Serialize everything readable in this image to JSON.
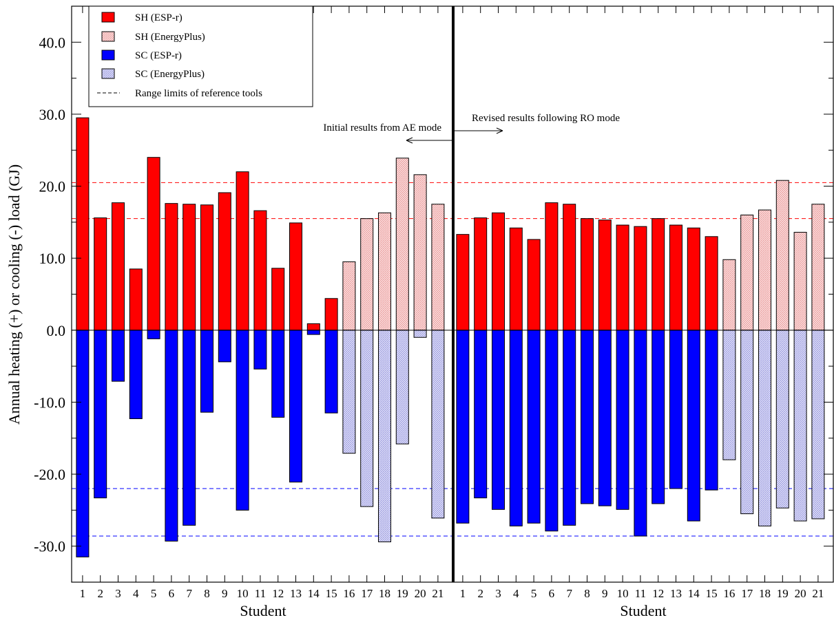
{
  "chart_data": {
    "type": "bar",
    "ylabel": "Annual heating (+) or cooling (-) load (GJ)",
    "ylim": [
      -35,
      45
    ],
    "y_ticks": [
      "40.0",
      "30.0",
      "20.0",
      "10.0",
      "0.0",
      "-10.0",
      "-20.0",
      "-30.0"
    ],
    "y_tick_values": [
      40,
      30,
      20,
      10,
      0,
      -10,
      -20,
      -30
    ],
    "grid": false,
    "legend_position": "top-left",
    "legend": [
      {
        "label": "SH (ESP-r)",
        "color": "#ff0000",
        "pattern": "solid"
      },
      {
        "label": "SH (EnergyPlus)",
        "color": "#f5b8b8",
        "pattern": "hatched"
      },
      {
        "label": "SC (ESP-r)",
        "color": "#0000ff",
        "pattern": "solid"
      },
      {
        "label": "SC (EnergyPlus)",
        "color": "#b8b8ee",
        "pattern": "hatched"
      },
      {
        "label": "Range limits of reference tools",
        "color": "#000000",
        "pattern": "dashed-line"
      }
    ],
    "reference_lines": [
      {
        "y": 20.5,
        "color": "#ff0000"
      },
      {
        "y": 15.5,
        "color": "#ff0000"
      },
      {
        "y": -22.0,
        "color": "#0000ff"
      },
      {
        "y": -28.6,
        "color": "#0000ff"
      }
    ],
    "panels": [
      {
        "xlabel": "Student",
        "annotation": "Initial results from AE mode",
        "categories": [
          "1",
          "2",
          "3",
          "4",
          "5",
          "6",
          "7",
          "8",
          "9",
          "10",
          "11",
          "12",
          "13",
          "14",
          "15",
          "16",
          "17",
          "18",
          "19",
          "20",
          "21"
        ],
        "heating": [
          29.5,
          15.6,
          17.7,
          8.5,
          24.0,
          17.6,
          17.5,
          17.4,
          19.1,
          22.0,
          16.6,
          8.6,
          14.9,
          0.9,
          4.4,
          9.5,
          15.5,
          16.3,
          23.9,
          21.6,
          17.5
        ],
        "cooling": [
          -31.5,
          -23.3,
          -7.1,
          -12.3,
          -1.2,
          -29.3,
          -27.1,
          -11.4,
          -4.4,
          -25.0,
          -5.4,
          -12.1,
          -21.1,
          -0.6,
          -11.5,
          -17.1,
          -24.5,
          -29.4,
          -15.8,
          -1.0,
          -26.1
        ],
        "tool": [
          "ESP-r",
          "ESP-r",
          "ESP-r",
          "ESP-r",
          "ESP-r",
          "ESP-r",
          "ESP-r",
          "ESP-r",
          "ESP-r",
          "ESP-r",
          "ESP-r",
          "ESP-r",
          "ESP-r",
          "ESP-r",
          "ESP-r",
          "EnergyPlus",
          "EnergyPlus",
          "EnergyPlus",
          "EnergyPlus",
          "EnergyPlus",
          "EnergyPlus"
        ]
      },
      {
        "xlabel": "Student",
        "annotation": "Revised results following RO mode",
        "categories": [
          "1",
          "2",
          "3",
          "4",
          "5",
          "6",
          "7",
          "8",
          "9",
          "10",
          "11",
          "12",
          "13",
          "14",
          "15",
          "16",
          "17",
          "18",
          "19",
          "20",
          "21"
        ],
        "heating": [
          13.3,
          15.6,
          16.3,
          14.2,
          12.6,
          17.7,
          17.5,
          15.5,
          15.3,
          14.6,
          14.4,
          15.5,
          14.6,
          14.2,
          13.0,
          9.8,
          16.0,
          16.7,
          20.8,
          13.6,
          17.5
        ],
        "cooling": [
          -26.8,
          -23.3,
          -24.9,
          -27.2,
          -26.8,
          -27.9,
          -27.1,
          -24.1,
          -24.4,
          -24.9,
          -28.6,
          -24.1,
          -22.0,
          -26.5,
          -22.2,
          -18.0,
          -25.5,
          -27.2,
          -24.7,
          -26.5,
          -26.2
        ],
        "tool": [
          "ESP-r",
          "ESP-r",
          "ESP-r",
          "ESP-r",
          "ESP-r",
          "ESP-r",
          "ESP-r",
          "ESP-r",
          "ESP-r",
          "ESP-r",
          "ESP-r",
          "ESP-r",
          "ESP-r",
          "ESP-r",
          "ESP-r",
          "EnergyPlus",
          "EnergyPlus",
          "EnergyPlus",
          "EnergyPlus",
          "EnergyPlus",
          "EnergyPlus"
        ]
      }
    ]
  }
}
